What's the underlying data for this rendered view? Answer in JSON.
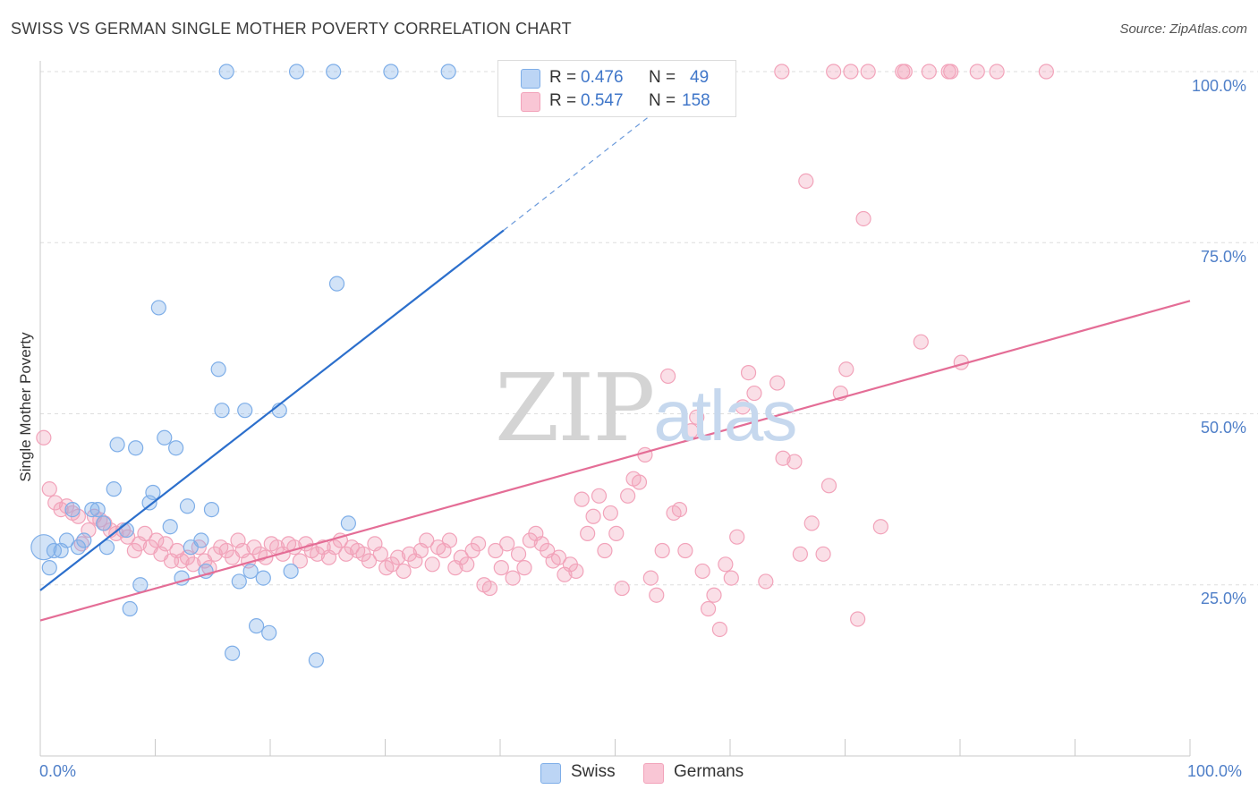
{
  "title": "SWISS VS GERMAN SINGLE MOTHER POVERTY CORRELATION CHART",
  "source": "Source: ZipAtlas.com",
  "watermark": {
    "part1": "ZIP",
    "part2": "atlas"
  },
  "colors": {
    "swiss": "#7eaee8",
    "german": "#f2a3ba",
    "swiss_line": "#2c6fcc",
    "german_line": "#e46d96",
    "tick_text": "#4f7fc8",
    "grid": "#dedede"
  },
  "legend_top": {
    "swiss": {
      "r_label": "R =",
      "r_value": "0.476",
      "n_label": "N =",
      "n_value": "49"
    },
    "german": {
      "r_label": "R =",
      "r_value": "0.547",
      "n_label": "N =",
      "n_value": "158"
    }
  },
  "legend_bottom": {
    "swiss": "Swiss",
    "german": "Germans"
  },
  "chart_data": {
    "type": "scatter",
    "title": "SWISS VS GERMAN SINGLE MOTHER POVERTY CORRELATION CHART",
    "xlabel": "",
    "ylabel": "Single Mother Poverty",
    "xlim": [
      0,
      100
    ],
    "ylim": [
      0,
      104
    ],
    "x_tick_labels": [
      "0.0%",
      "100.0%"
    ],
    "y_tick_labels": [
      "25.0%",
      "50.0%",
      "75.0%",
      "100.0%"
    ],
    "y_ticks": [
      25,
      50,
      75,
      100
    ],
    "grid": true,
    "legend_placement": "bottom-center",
    "series": [
      {
        "name": "Swiss",
        "r": 0.476,
        "n": 49,
        "trend": {
          "x": [
            0,
            40.3
          ],
          "y": [
            24.2,
            76.8
          ],
          "dashed_to": [
            53.0,
            93.5
          ]
        },
        "points": [
          [
            0.3,
            30.5
          ],
          [
            0.8,
            27.5
          ],
          [
            1.2,
            30.0
          ],
          [
            1.8,
            30.0
          ],
          [
            2.3,
            31.5
          ],
          [
            2.8,
            36.0
          ],
          [
            3.3,
            30.5
          ],
          [
            3.8,
            31.5
          ],
          [
            4.5,
            36.0
          ],
          [
            5.0,
            36.0
          ],
          [
            5.5,
            34.0
          ],
          [
            5.8,
            30.5
          ],
          [
            6.4,
            39.0
          ],
          [
            6.7,
            45.5
          ],
          [
            7.5,
            33.0
          ],
          [
            7.8,
            21.5
          ],
          [
            8.3,
            45.0
          ],
          [
            8.7,
            25.0
          ],
          [
            9.5,
            37.0
          ],
          [
            9.8,
            38.5
          ],
          [
            10.3,
            65.5
          ],
          [
            10.8,
            46.5
          ],
          [
            11.3,
            33.5
          ],
          [
            11.8,
            45.0
          ],
          [
            12.3,
            26.0
          ],
          [
            12.8,
            36.5
          ],
          [
            13.1,
            30.5
          ],
          [
            14.0,
            31.5
          ],
          [
            14.4,
            27.0
          ],
          [
            14.9,
            36.0
          ],
          [
            15.5,
            56.5
          ],
          [
            15.8,
            50.5
          ],
          [
            16.2,
            100.0
          ],
          [
            16.7,
            15.0
          ],
          [
            17.3,
            25.5
          ],
          [
            17.8,
            50.5
          ],
          [
            18.3,
            27.0
          ],
          [
            18.8,
            19.0
          ],
          [
            19.4,
            26.0
          ],
          [
            19.9,
            18.0
          ],
          [
            20.8,
            50.5
          ],
          [
            21.8,
            27.0
          ],
          [
            22.3,
            100.0
          ],
          [
            24.0,
            14.0
          ],
          [
            25.5,
            100.0
          ],
          [
            25.8,
            69.0
          ],
          [
            26.8,
            34.0
          ],
          [
            30.5,
            100.0
          ],
          [
            35.5,
            100.0
          ]
        ]
      },
      {
        "name": "Germans",
        "r": 0.547,
        "n": 158,
        "trend": {
          "x": [
            0,
            100
          ],
          "y": [
            19.8,
            66.5
          ]
        },
        "points": [
          [
            0.3,
            46.5
          ],
          [
            0.8,
            39.0
          ],
          [
            1.3,
            37.0
          ],
          [
            1.8,
            36.0
          ],
          [
            2.3,
            36.5
          ],
          [
            2.8,
            35.5
          ],
          [
            3.3,
            35.0
          ],
          [
            3.6,
            31.0
          ],
          [
            4.2,
            33.0
          ],
          [
            4.7,
            35.0
          ],
          [
            5.2,
            34.5
          ],
          [
            5.6,
            34.0
          ],
          [
            6.1,
            33.0
          ],
          [
            6.6,
            32.5
          ],
          [
            7.2,
            33.0
          ],
          [
            7.6,
            32.0
          ],
          [
            8.2,
            30.0
          ],
          [
            8.6,
            31.0
          ],
          [
            9.1,
            32.5
          ],
          [
            9.6,
            30.5
          ],
          [
            10.1,
            31.5
          ],
          [
            10.5,
            29.5
          ],
          [
            10.9,
            31.0
          ],
          [
            11.4,
            28.5
          ],
          [
            11.9,
            30.0
          ],
          [
            12.3,
            28.5
          ],
          [
            12.8,
            29.0
          ],
          [
            13.3,
            28.0
          ],
          [
            13.8,
            30.5
          ],
          [
            14.3,
            28.5
          ],
          [
            14.7,
            27.5
          ],
          [
            15.2,
            29.5
          ],
          [
            15.7,
            30.5
          ],
          [
            16.2,
            30.0
          ],
          [
            16.7,
            29.0
          ],
          [
            17.2,
            31.5
          ],
          [
            17.6,
            30.0
          ],
          [
            18.1,
            28.5
          ],
          [
            18.6,
            30.5
          ],
          [
            19.1,
            29.5
          ],
          [
            19.6,
            29.0
          ],
          [
            20.1,
            31.0
          ],
          [
            20.6,
            30.5
          ],
          [
            21.1,
            29.5
          ],
          [
            21.6,
            31.0
          ],
          [
            22.1,
            30.5
          ],
          [
            22.6,
            28.5
          ],
          [
            23.1,
            31.0
          ],
          [
            23.6,
            30.0
          ],
          [
            24.1,
            29.5
          ],
          [
            24.6,
            30.5
          ],
          [
            25.1,
            29.0
          ],
          [
            25.6,
            30.5
          ],
          [
            26.1,
            31.5
          ],
          [
            26.6,
            29.5
          ],
          [
            27.1,
            30.5
          ],
          [
            27.6,
            30.0
          ],
          [
            28.1,
            29.5
          ],
          [
            28.6,
            28.5
          ],
          [
            29.1,
            31.0
          ],
          [
            29.6,
            29.5
          ],
          [
            30.1,
            27.5
          ],
          [
            30.6,
            28.0
          ],
          [
            31.1,
            29.0
          ],
          [
            31.6,
            27.0
          ],
          [
            32.1,
            29.5
          ],
          [
            32.6,
            28.5
          ],
          [
            33.1,
            30.0
          ],
          [
            33.6,
            31.5
          ],
          [
            34.1,
            28.0
          ],
          [
            34.6,
            30.5
          ],
          [
            35.1,
            30.0
          ],
          [
            35.6,
            31.5
          ],
          [
            36.1,
            27.5
          ],
          [
            36.6,
            29.0
          ],
          [
            37.1,
            28.0
          ],
          [
            37.6,
            30.0
          ],
          [
            38.1,
            31.0
          ],
          [
            38.6,
            25.0
          ],
          [
            39.1,
            24.5
          ],
          [
            39.6,
            30.0
          ],
          [
            40.1,
            27.5
          ],
          [
            40.6,
            31.0
          ],
          [
            41.1,
            26.0
          ],
          [
            41.6,
            29.5
          ],
          [
            42.1,
            27.5
          ],
          [
            42.6,
            31.5
          ],
          [
            43.1,
            32.5
          ],
          [
            43.6,
            31.0
          ],
          [
            44.1,
            30.0
          ],
          [
            44.6,
            28.5
          ],
          [
            45.1,
            29.0
          ],
          [
            45.6,
            26.5
          ],
          [
            46.1,
            28.0
          ],
          [
            46.6,
            27.0
          ],
          [
            47.1,
            37.5
          ],
          [
            47.6,
            32.5
          ],
          [
            48.1,
            35.0
          ],
          [
            48.6,
            38.0
          ],
          [
            49.1,
            30.0
          ],
          [
            49.6,
            35.5
          ],
          [
            50.1,
            32.5
          ],
          [
            50.6,
            24.5
          ],
          [
            51.1,
            38.0
          ],
          [
            51.6,
            40.5
          ],
          [
            52.1,
            40.0
          ],
          [
            52.6,
            44.0
          ],
          [
            53.1,
            26.0
          ],
          [
            53.6,
            23.5
          ],
          [
            54.1,
            30.0
          ],
          [
            54.6,
            55.5
          ],
          [
            55.1,
            35.5
          ],
          [
            55.6,
            36.0
          ],
          [
            56.1,
            30.0
          ],
          [
            56.6,
            47.5
          ],
          [
            57.1,
            49.5
          ],
          [
            57.6,
            27.0
          ],
          [
            58.1,
            21.5
          ],
          [
            58.6,
            23.5
          ],
          [
            59.1,
            18.5
          ],
          [
            59.6,
            28.0
          ],
          [
            60.1,
            26.0
          ],
          [
            60.6,
            32.0
          ],
          [
            61.1,
            51.0
          ],
          [
            61.6,
            56.0
          ],
          [
            62.1,
            53.0
          ],
          [
            63.1,
            25.5
          ],
          [
            64.1,
            54.5
          ],
          [
            64.6,
            43.5
          ],
          [
            65.6,
            43.0
          ],
          [
            66.1,
            29.5
          ],
          [
            66.6,
            84.0
          ],
          [
            67.1,
            34.0
          ],
          [
            68.1,
            29.5
          ],
          [
            68.6,
            39.5
          ],
          [
            69.6,
            53.0
          ],
          [
            70.1,
            56.5
          ],
          [
            71.1,
            20.0
          ],
          [
            71.6,
            78.5
          ],
          [
            73.1,
            33.5
          ],
          [
            76.6,
            60.5
          ],
          [
            80.1,
            57.5
          ],
          [
            64.5,
            100.0
          ],
          [
            69.0,
            100.0
          ],
          [
            70.5,
            100.0
          ],
          [
            72.0,
            100.0
          ],
          [
            75.0,
            100.0
          ],
          [
            75.2,
            100.0
          ],
          [
            77.3,
            100.0
          ],
          [
            79.0,
            100.0
          ],
          [
            79.2,
            100.0
          ],
          [
            81.5,
            100.0
          ],
          [
            83.2,
            100.0
          ],
          [
            87.5,
            100.0
          ]
        ]
      }
    ]
  }
}
